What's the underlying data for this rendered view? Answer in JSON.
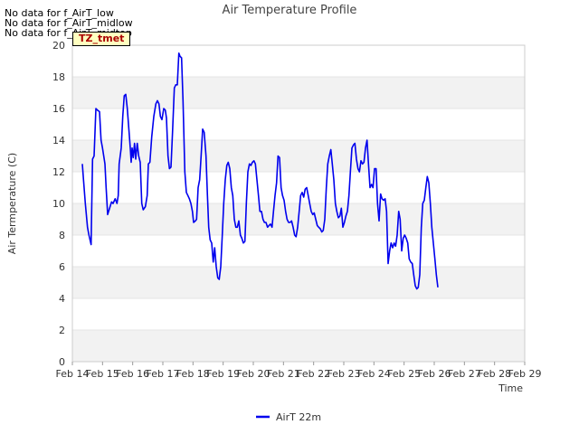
{
  "no_data": [
    "No data for f_AirT_low",
    "No data for f_AirT_midlow",
    "No data for f_AirT_midtop"
  ],
  "tz_label": "TZ_tmet",
  "colors": {
    "line": "#0000ee",
    "band": "#f2f2f2",
    "axis": "#cccccc"
  },
  "chart_data": {
    "type": "line",
    "title": "Air Temperature Profile",
    "xlabel": "Time",
    "ylabel": "Air Termperature (C)",
    "ylim": [
      0,
      20
    ],
    "yticks": [
      0,
      2,
      4,
      6,
      8,
      10,
      12,
      14,
      16,
      18,
      20
    ],
    "xlim": [
      14,
      29
    ],
    "xticks": [
      {
        "value": 14,
        "label": "Feb 14"
      },
      {
        "value": 15,
        "label": "Feb 15"
      },
      {
        "value": 16,
        "label": "Feb 16"
      },
      {
        "value": 17,
        "label": "Feb 17"
      },
      {
        "value": 18,
        "label": "Feb 18"
      },
      {
        "value": 19,
        "label": "Feb 19"
      },
      {
        "value": 20,
        "label": "Feb 20"
      },
      {
        "value": 21,
        "label": "Feb 21"
      },
      {
        "value": 22,
        "label": "Feb 22"
      },
      {
        "value": 23,
        "label": "Feb 23"
      },
      {
        "value": 24,
        "label": "Feb 24"
      },
      {
        "value": 25,
        "label": "Feb 25"
      },
      {
        "value": 26,
        "label": "Feb 26"
      },
      {
        "value": 27,
        "label": "Feb 27"
      },
      {
        "value": 28,
        "label": "Feb 28"
      },
      {
        "value": 29,
        "label": "Feb 29"
      }
    ],
    "legend": {
      "position": "bottom-center"
    },
    "series": [
      {
        "name": "AirT 22m",
        "color": "#0000ee",
        "points": [
          [
            14.33,
            12.5
          ],
          [
            14.37,
            11.5
          ],
          [
            14.43,
            10.0
          ],
          [
            14.5,
            8.5
          ],
          [
            14.55,
            8.0
          ],
          [
            14.62,
            7.4
          ],
          [
            14.67,
            12.8
          ],
          [
            14.72,
            13.0
          ],
          [
            14.78,
            16.0
          ],
          [
            14.83,
            15.9
          ],
          [
            14.9,
            15.8
          ],
          [
            14.95,
            14.0
          ],
          [
            15.0,
            13.5
          ],
          [
            15.08,
            12.5
          ],
          [
            15.12,
            11.0
          ],
          [
            15.17,
            9.3
          ],
          [
            15.25,
            9.8
          ],
          [
            15.3,
            10.1
          ],
          [
            15.35,
            10.0
          ],
          [
            15.42,
            10.3
          ],
          [
            15.48,
            10.0
          ],
          [
            15.52,
            10.5
          ],
          [
            15.55,
            12.5
          ],
          [
            15.62,
            13.5
          ],
          [
            15.67,
            15.5
          ],
          [
            15.72,
            16.8
          ],
          [
            15.77,
            16.9
          ],
          [
            15.82,
            16.0
          ],
          [
            15.88,
            14.5
          ],
          [
            15.92,
            13.5
          ],
          [
            15.95,
            12.6
          ],
          [
            15.98,
            13.5
          ],
          [
            16.02,
            12.9
          ],
          [
            16.06,
            13.8
          ],
          [
            16.1,
            12.8
          ],
          [
            16.15,
            13.8
          ],
          [
            16.2,
            13.0
          ],
          [
            16.25,
            12.6
          ],
          [
            16.3,
            10.0
          ],
          [
            16.35,
            9.6
          ],
          [
            16.42,
            9.8
          ],
          [
            16.48,
            10.5
          ],
          [
            16.52,
            12.5
          ],
          [
            16.57,
            12.6
          ],
          [
            16.63,
            14.2
          ],
          [
            16.7,
            15.5
          ],
          [
            16.77,
            16.3
          ],
          [
            16.82,
            16.5
          ],
          [
            16.87,
            16.3
          ],
          [
            16.92,
            15.5
          ],
          [
            16.97,
            15.3
          ],
          [
            17.03,
            16.0
          ],
          [
            17.08,
            15.9
          ],
          [
            17.12,
            15.4
          ],
          [
            17.17,
            13.0
          ],
          [
            17.22,
            12.2
          ],
          [
            17.27,
            12.3
          ],
          [
            17.32,
            14.5
          ],
          [
            17.38,
            17.3
          ],
          [
            17.43,
            17.5
          ],
          [
            17.48,
            17.5
          ],
          [
            17.53,
            19.5
          ],
          [
            17.57,
            19.3
          ],
          [
            17.62,
            19.2
          ],
          [
            17.67,
            16.5
          ],
          [
            17.73,
            12.0
          ],
          [
            17.78,
            10.7
          ],
          [
            17.83,
            10.5
          ],
          [
            17.88,
            10.3
          ],
          [
            17.93,
            10.0
          ],
          [
            17.98,
            9.5
          ],
          [
            18.02,
            8.8
          ],
          [
            18.08,
            8.9
          ],
          [
            18.12,
            9.0
          ],
          [
            18.17,
            11.0
          ],
          [
            18.22,
            11.5
          ],
          [
            18.27,
            13.0
          ],
          [
            18.32,
            14.7
          ],
          [
            18.37,
            14.5
          ],
          [
            18.43,
            13.0
          ],
          [
            18.48,
            10.5
          ],
          [
            18.52,
            8.5
          ],
          [
            18.57,
            7.7
          ],
          [
            18.62,
            7.5
          ],
          [
            18.67,
            6.3
          ],
          [
            18.72,
            7.2
          ],
          [
            18.77,
            6.0
          ],
          [
            18.82,
            5.3
          ],
          [
            18.87,
            5.2
          ],
          [
            18.92,
            6.0
          ],
          [
            18.97,
            8.0
          ],
          [
            19.02,
            10.0
          ],
          [
            19.07,
            11.5
          ],
          [
            19.12,
            12.4
          ],
          [
            19.17,
            12.6
          ],
          [
            19.22,
            12.2
          ],
          [
            19.27,
            11.0
          ],
          [
            19.32,
            10.5
          ],
          [
            19.37,
            9.0
          ],
          [
            19.42,
            8.5
          ],
          [
            19.47,
            8.5
          ],
          [
            19.52,
            8.9
          ],
          [
            19.57,
            8.0
          ],
          [
            19.62,
            7.8
          ],
          [
            19.67,
            7.5
          ],
          [
            19.72,
            7.6
          ],
          [
            19.77,
            10.0
          ],
          [
            19.82,
            12.0
          ],
          [
            19.87,
            12.5
          ],
          [
            19.92,
            12.4
          ],
          [
            19.97,
            12.6
          ],
          [
            20.02,
            12.7
          ],
          [
            20.07,
            12.5
          ],
          [
            20.12,
            11.5
          ],
          [
            20.17,
            10.5
          ],
          [
            20.22,
            9.5
          ],
          [
            20.27,
            9.5
          ],
          [
            20.32,
            9.0
          ],
          [
            20.37,
            8.8
          ],
          [
            20.42,
            8.8
          ],
          [
            20.47,
            8.5
          ],
          [
            20.52,
            8.6
          ],
          [
            20.57,
            8.7
          ],
          [
            20.62,
            8.5
          ],
          [
            20.67,
            9.5
          ],
          [
            20.72,
            10.5
          ],
          [
            20.77,
            11.3
          ],
          [
            20.82,
            13.0
          ],
          [
            20.87,
            12.9
          ],
          [
            20.92,
            11.0
          ],
          [
            20.97,
            10.5
          ],
          [
            21.02,
            10.2
          ],
          [
            21.07,
            9.5
          ],
          [
            21.12,
            9.0
          ],
          [
            21.17,
            8.8
          ],
          [
            21.22,
            8.8
          ],
          [
            21.27,
            8.9
          ],
          [
            21.32,
            8.5
          ],
          [
            21.37,
            8.0
          ],
          [
            21.42,
            7.9
          ],
          [
            21.47,
            8.5
          ],
          [
            21.52,
            9.5
          ],
          [
            21.57,
            10.5
          ],
          [
            21.62,
            10.7
          ],
          [
            21.67,
            10.4
          ],
          [
            21.72,
            10.9
          ],
          [
            21.77,
            11.0
          ],
          [
            21.82,
            10.5
          ],
          [
            21.87,
            10.0
          ],
          [
            21.92,
            9.5
          ],
          [
            21.97,
            9.3
          ],
          [
            22.02,
            9.4
          ],
          [
            22.07,
            9.0
          ],
          [
            22.12,
            8.6
          ],
          [
            22.17,
            8.5
          ],
          [
            22.22,
            8.4
          ],
          [
            22.27,
            8.2
          ],
          [
            22.32,
            8.3
          ],
          [
            22.37,
            9.0
          ],
          [
            22.42,
            11.0
          ],
          [
            22.47,
            12.5
          ],
          [
            22.52,
            13.0
          ],
          [
            22.57,
            13.4
          ],
          [
            22.62,
            12.5
          ],
          [
            22.67,
            11.5
          ],
          [
            22.72,
            10.0
          ],
          [
            22.77,
            9.5
          ],
          [
            22.82,
            9.1
          ],
          [
            22.87,
            9.2
          ],
          [
            22.92,
            9.7
          ],
          [
            22.97,
            8.5
          ],
          [
            23.02,
            8.8
          ],
          [
            23.07,
            9.2
          ],
          [
            23.12,
            9.5
          ],
          [
            23.17,
            10.5
          ],
          [
            23.22,
            12.0
          ],
          [
            23.27,
            13.5
          ],
          [
            23.32,
            13.7
          ],
          [
            23.37,
            13.8
          ],
          [
            23.42,
            12.8
          ],
          [
            23.47,
            12.2
          ],
          [
            23.52,
            12.0
          ],
          [
            23.57,
            12.7
          ],
          [
            23.62,
            12.5
          ],
          [
            23.67,
            12.6
          ],
          [
            23.72,
            13.5
          ],
          [
            23.77,
            14.0
          ],
          [
            23.82,
            12.5
          ],
          [
            23.87,
            11.0
          ],
          [
            23.92,
            11.2
          ],
          [
            23.97,
            11.0
          ],
          [
            24.02,
            12.2
          ],
          [
            24.07,
            12.2
          ],
          [
            24.12,
            10.0
          ],
          [
            24.17,
            8.9
          ],
          [
            24.22,
            10.6
          ],
          [
            24.27,
            10.3
          ],
          [
            24.32,
            10.2
          ],
          [
            24.37,
            10.3
          ],
          [
            24.42,
            9.5
          ],
          [
            24.47,
            6.2
          ],
          [
            24.52,
            7.0
          ],
          [
            24.57,
            7.5
          ],
          [
            24.62,
            7.2
          ],
          [
            24.67,
            7.5
          ],
          [
            24.72,
            7.3
          ],
          [
            24.77,
            8.0
          ],
          [
            24.82,
            9.5
          ],
          [
            24.87,
            9.0
          ],
          [
            24.92,
            7.0
          ],
          [
            24.97,
            7.8
          ],
          [
            25.02,
            8.0
          ],
          [
            25.07,
            7.8
          ],
          [
            25.12,
            7.5
          ],
          [
            25.17,
            6.5
          ],
          [
            25.22,
            6.3
          ],
          [
            25.27,
            6.2
          ],
          [
            25.32,
            5.5
          ],
          [
            25.37,
            4.8
          ],
          [
            25.42,
            4.6
          ],
          [
            25.47,
            4.7
          ],
          [
            25.52,
            5.5
          ],
          [
            25.57,
            8.5
          ],
          [
            25.62,
            10.0
          ],
          [
            25.67,
            10.2
          ],
          [
            25.72,
            11.0
          ],
          [
            25.77,
            11.7
          ],
          [
            25.82,
            11.3
          ],
          [
            25.87,
            10.0
          ],
          [
            25.92,
            8.5
          ],
          [
            25.97,
            7.5
          ],
          [
            26.02,
            6.5
          ],
          [
            26.07,
            5.5
          ],
          [
            26.12,
            4.7
          ]
        ]
      }
    ]
  }
}
